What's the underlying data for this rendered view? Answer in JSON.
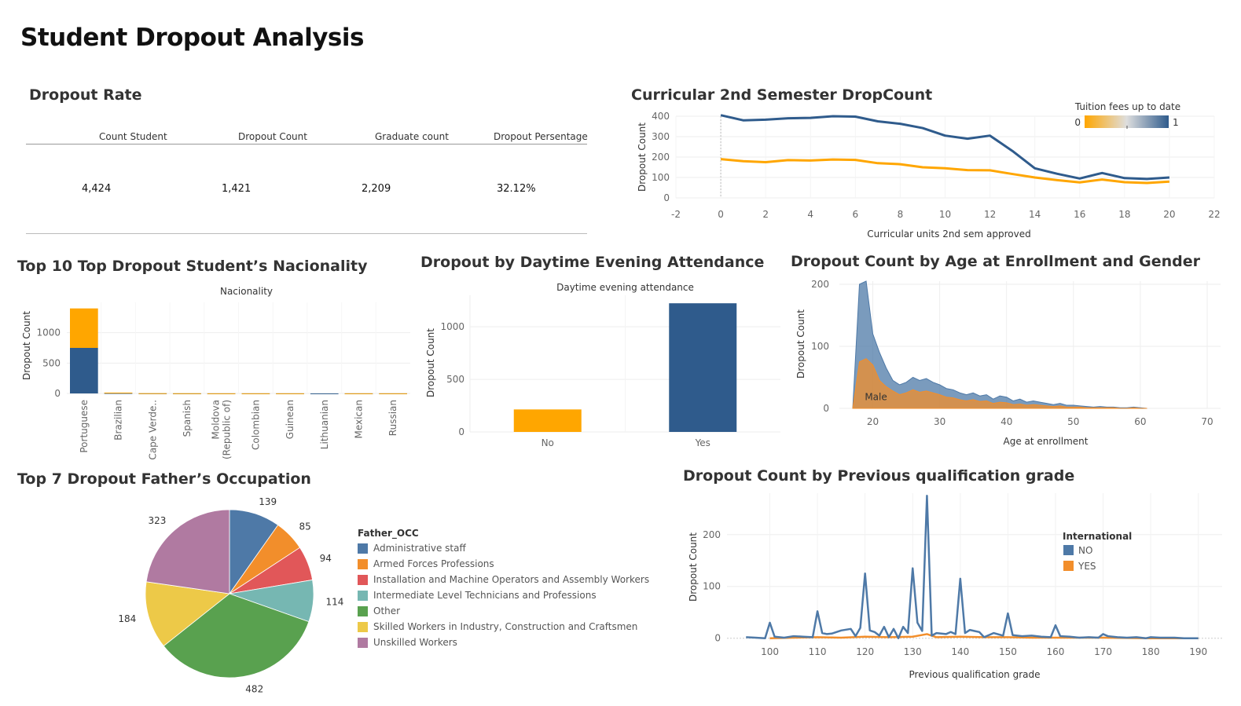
{
  "dashboard": {
    "title": "Student Dropout Analysis"
  },
  "kpi": {
    "title": "Dropout Rate",
    "columns": [
      "Count Student",
      "Dropout Count",
      "Graduate count",
      "Dropout Persentage"
    ],
    "values": [
      "4,424",
      "1,421",
      "2,209",
      "32.12%"
    ]
  },
  "colors": {
    "blue": "#2f5b8c",
    "orange": "#ffa600",
    "tab_blue": "#4e79a7",
    "tab_orange": "#f28e2b"
  },
  "chart_data": [
    {
      "id": "curricular",
      "type": "line",
      "title": "Curricular 2nd Semester DropCount",
      "xlabel": "Curricular units 2nd sem approved",
      "ylabel": "Dropout Count",
      "xlim": [
        -2,
        22
      ],
      "ylim": [
        0,
        400
      ],
      "xticks": [
        -2,
        0,
        2,
        4,
        6,
        8,
        10,
        12,
        14,
        16,
        18,
        20,
        22
      ],
      "yticks": [
        0,
        100,
        200,
        300,
        400
      ],
      "legend": {
        "title": "Tuition fees up to date",
        "min_label": "0",
        "max_label": "1"
      },
      "series": [
        {
          "color": "#2f5b8c",
          "x": [
            0,
            1,
            2,
            3,
            4,
            5,
            6,
            7,
            8,
            9,
            10,
            11,
            12,
            13,
            14,
            15,
            16,
            17,
            18,
            19,
            20
          ],
          "values": [
            405,
            380,
            383,
            390,
            392,
            400,
            398,
            375,
            363,
            342,
            305,
            290,
            305,
            230,
            145,
            118,
            95,
            122,
            97,
            93,
            100
          ]
        },
        {
          "color": "#ffa600",
          "x": [
            0,
            1,
            2,
            3,
            4,
            5,
            6,
            7,
            8,
            9,
            10,
            11,
            12,
            13,
            14,
            15,
            16,
            17,
            18,
            19,
            20
          ],
          "values": [
            190,
            180,
            175,
            185,
            183,
            188,
            186,
            170,
            165,
            150,
            145,
            136,
            135,
            117,
            100,
            87,
            76,
            90,
            77,
            73,
            80
          ]
        }
      ]
    },
    {
      "id": "nationality",
      "type": "bar",
      "stacked": true,
      "title": "Top 10 Top Dropout Student’s Nacionality",
      "xlabel": "Nacionality",
      "ylabel": "Dropout Count",
      "ylim": [
        0,
        1500
      ],
      "yticks": [
        0,
        500,
        1000
      ],
      "categories": [
        "Portuguese",
        "Brazilian",
        "Cape Verde..",
        "Spanish",
        "Moldova (Republic of)",
        "Colombian",
        "Guinean",
        "Lithuanian",
        "Mexican",
        "Russian"
      ],
      "series": [
        {
          "color": "#2f5b8c",
          "values": [
            750,
            6,
            2,
            1,
            1,
            1,
            1,
            1,
            1,
            1
          ]
        },
        {
          "color": "#ffa600",
          "values": [
            650,
            8,
            2,
            2,
            1,
            1,
            1,
            0,
            1,
            1
          ]
        }
      ]
    },
    {
      "id": "attendance",
      "type": "bar",
      "title": "Dropout by Daytime Evening Attendance",
      "xlabel": "Daytime evening attendance",
      "ylabel": "Dropout Count",
      "ylim": [
        0,
        1300
      ],
      "yticks": [
        0,
        500,
        1000
      ],
      "categories": [
        "No",
        "Yes"
      ],
      "colors": [
        "#ffa600",
        "#2f5b8c"
      ],
      "values": [
        214,
        1224
      ]
    },
    {
      "id": "age",
      "type": "area",
      "title": "Dropout Count by Age at Enrollment and Gender",
      "xlabel": "Age at enrollment",
      "ylabel": "Dropout Count",
      "xlim": [
        15,
        72
      ],
      "ylim": [
        0,
        205
      ],
      "xticks": [
        20,
        30,
        40,
        50,
        60,
        70
      ],
      "yticks": [
        0,
        100,
        200
      ],
      "annotation": "Male",
      "series": [
        {
          "color": "#4e79a7",
          "x": [
            17,
            18,
            19,
            20,
            21,
            22,
            23,
            24,
            25,
            26,
            27,
            28,
            29,
            30,
            31,
            32,
            33,
            34,
            35,
            36,
            37,
            38,
            39,
            40,
            41,
            42,
            43,
            44,
            45,
            46,
            47,
            48,
            49,
            50,
            51,
            52,
            53,
            54,
            55,
            56,
            57,
            58,
            59,
            60,
            61
          ],
          "values": [
            0,
            200,
            205,
            120,
            90,
            65,
            45,
            38,
            42,
            50,
            45,
            48,
            42,
            38,
            32,
            30,
            25,
            22,
            25,
            20,
            22,
            15,
            20,
            18,
            12,
            15,
            10,
            12,
            10,
            8,
            6,
            8,
            5,
            5,
            4,
            3,
            2,
            3,
            2,
            2,
            1,
            1,
            2,
            1,
            0
          ]
        },
        {
          "color": "#f28e2b",
          "x": [
            17,
            18,
            19,
            20,
            21,
            22,
            23,
            24,
            25,
            26,
            27,
            28,
            29,
            30,
            31,
            32,
            33,
            34,
            35,
            36,
            37,
            38,
            39,
            40,
            41,
            42,
            43,
            44,
            45,
            46,
            47,
            48,
            49,
            50,
            51,
            52,
            53,
            54,
            55,
            56,
            57,
            58,
            59,
            60,
            61
          ],
          "values": [
            0,
            75,
            80,
            70,
            45,
            35,
            28,
            22,
            25,
            30,
            26,
            28,
            25,
            22,
            18,
            17,
            14,
            12,
            14,
            11,
            12,
            8,
            10,
            9,
            6,
            7,
            5,
            6,
            5,
            4,
            3,
            4,
            2,
            2,
            2,
            1,
            1,
            1,
            1,
            1,
            0,
            0,
            1,
            0,
            0
          ]
        }
      ]
    },
    {
      "id": "father",
      "type": "pie",
      "title": "Top 7 Dropout Father’s Occupation",
      "legend_title": "Father_OCC",
      "categories": [
        "Administrative staff",
        "Armed Forces Professions",
        "Installation and Machine Operators and Assembly Workers",
        "Intermediate Level Technicians and Professions",
        "Other",
        "Skilled Workers in Industry, Construction and Craftsmen",
        "Unskilled Workers"
      ],
      "values": [
        139,
        85,
        94,
        114,
        482,
        184,
        323
      ],
      "colors": [
        "#4e79a7",
        "#f28e2b",
        "#e15759",
        "#76b7b2",
        "#59a14f",
        "#edc948",
        "#b07aa1"
      ]
    },
    {
      "id": "grade",
      "type": "line",
      "title": "Dropout Count by Previous qualification grade",
      "xlabel": "Previous qualification grade",
      "ylabel": "Dropout Count",
      "xlim": [
        91,
        195
      ],
      "ylim": [
        -5,
        280
      ],
      "xticks": [
        100,
        110,
        120,
        130,
        140,
        150,
        160,
        170,
        180,
        190
      ],
      "yticks": [
        0,
        100,
        200
      ],
      "legend": {
        "title": "International",
        "entries": [
          "NO",
          "YES"
        ]
      },
      "series": [
        {
          "color": "#4e79a7",
          "x": [
            95,
            97,
            99,
            100,
            101,
            102,
            103,
            105,
            107,
            109,
            110,
            111,
            112,
            113,
            115,
            117,
            118,
            119,
            120,
            121,
            122,
            123,
            124,
            125,
            126,
            127,
            128,
            129,
            130,
            131,
            132,
            133,
            134,
            135,
            137,
            138,
            139,
            140,
            141,
            142,
            143,
            144,
            145,
            147,
            149,
            150,
            151,
            153,
            155,
            157,
            159,
            160,
            161,
            163,
            165,
            167,
            169,
            170,
            171,
            173,
            175,
            177,
            179,
            180,
            182,
            185,
            187,
            190
          ],
          "values": [
            2,
            1,
            0,
            30,
            3,
            2,
            1,
            4,
            3,
            2,
            52,
            10,
            8,
            9,
            15,
            18,
            4,
            20,
            125,
            15,
            12,
            5,
            22,
            2,
            18,
            0,
            22,
            10,
            135,
            30,
            14,
            275,
            5,
            10,
            8,
            12,
            8,
            115,
            10,
            16,
            14,
            12,
            2,
            10,
            5,
            48,
            6,
            4,
            5,
            3,
            2,
            25,
            4,
            3,
            1,
            2,
            1,
            8,
            4,
            2,
            1,
            2,
            0,
            2,
            1,
            1,
            0,
            0
          ]
        },
        {
          "color": "#f28e2b",
          "x": [
            100,
            105,
            110,
            115,
            120,
            125,
            130,
            133,
            135,
            140,
            145,
            150,
            155,
            160,
            170,
            180,
            190
          ],
          "values": [
            0,
            1,
            2,
            1,
            3,
            2,
            3,
            8,
            2,
            3,
            2,
            2,
            1,
            1,
            1,
            0,
            0
          ]
        }
      ]
    }
  ]
}
